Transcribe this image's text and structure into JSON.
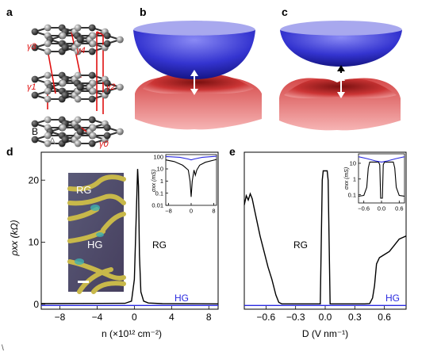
{
  "panels": {
    "a": {
      "letter": "a",
      "hopping_labels": [
        "γ3",
        "γ4",
        "γ1",
        "γ2",
        "γ0"
      ],
      "sublattice_labels": [
        "B",
        "A"
      ]
    },
    "b": {
      "letter": "b"
    },
    "c": {
      "letter": "c"
    },
    "d": {
      "letter": "d"
    },
    "e": {
      "letter": "e"
    }
  },
  "colors": {
    "black": "#000000",
    "blue": "#2a2ae0",
    "red_hop": "#e01010",
    "band_blue": "#3b3bd8",
    "band_red": "#d84444"
  },
  "chart_data": [
    {
      "id": "d-main",
      "type": "line",
      "xlabel": "n (×10¹² cm⁻²)",
      "ylabel": "ρxx (kΩ)",
      "xlim": [
        -10,
        9
      ],
      "ylim": [
        -0.8,
        24.5
      ],
      "xticks": [
        "-8",
        "-4",
        "0",
        "4",
        "8"
      ],
      "yticks": [
        "0",
        "10",
        "20"
      ],
      "series": [
        {
          "name": "RG",
          "color": "#000000",
          "x": [
            -10,
            -1,
            -0.3,
            0,
            0.2,
            0.35,
            0.45,
            0.55,
            0.7,
            1.0,
            1.5,
            3,
            9
          ],
          "y": [
            0.1,
            0.15,
            0.5,
            4,
            14,
            21.8,
            19,
            8,
            2,
            0.5,
            0.2,
            0.1,
            0.05
          ]
        },
        {
          "name": "HG",
          "color": "#2a2ae0",
          "x": [
            -10,
            9
          ],
          "y": [
            -0.2,
            -0.2
          ]
        }
      ],
      "labels": {
        "rg": "RG",
        "hg": "HG"
      }
    },
    {
      "id": "d-inset",
      "type": "line",
      "xlabel": "",
      "ylabel": "σxx (mS)",
      "scale": "log",
      "xlim": [
        -9,
        9
      ],
      "ylim": [
        0.01,
        150
      ],
      "xticks": [
        "-8",
        "0",
        "8"
      ],
      "yticks": [
        "0.01",
        "0.1",
        "1",
        "10",
        "100"
      ],
      "series": [
        {
          "name": "black",
          "color": "#000000",
          "x": [
            -9,
            -6,
            -3,
            -1,
            -0.4,
            0,
            0.4,
            1,
            1.5,
            2,
            3,
            5,
            9
          ],
          "y": [
            55,
            40,
            20,
            8,
            1,
            0.05,
            1,
            8,
            3,
            8,
            20,
            35,
            60
          ]
        },
        {
          "name": "blue",
          "color": "#2a2ae0",
          "x": [
            -9,
            -4,
            -1,
            0,
            1,
            4,
            9
          ],
          "y": [
            105,
            90,
            65,
            55,
            65,
            90,
            110
          ]
        }
      ]
    },
    {
      "id": "e-main",
      "type": "line",
      "xlabel": "D (V nm⁻¹)",
      "xlim": [
        -0.82,
        0.82
      ],
      "ylim": [
        -0.8,
        24.5
      ],
      "xticks": [
        "-0.6",
        "-0.3",
        "0.0",
        "0.3",
        "0.6"
      ],
      "series": [
        {
          "name": "RG",
          "color": "#000000",
          "x": [
            -0.82,
            -0.8,
            -0.78,
            -0.76,
            -0.74,
            -0.72,
            -0.7,
            -0.66,
            -0.62,
            -0.58,
            -0.54,
            -0.5,
            -0.47,
            -0.44,
            -0.4,
            -0.05,
            -0.03,
            -0.02,
            0.02,
            0.03,
            0.05,
            0.4,
            0.45,
            0.48,
            0.5,
            0.52,
            0.55,
            0.6,
            0.65,
            0.7,
            0.75,
            0.82
          ],
          "y": [
            16,
            17.5,
            16.8,
            17.8,
            17,
            15.5,
            14,
            11,
            8.5,
            6,
            4,
            1.5,
            0.3,
            0.05,
            0.05,
            0.05,
            20,
            21.5,
            21.5,
            20,
            0.05,
            0.05,
            0.1,
            1,
            3,
            6.5,
            7.5,
            8,
            8.5,
            9.5,
            10.5,
            11
          ]
        },
        {
          "name": "HG",
          "color": "#2a2ae0",
          "x": [
            -0.82,
            0.82
          ],
          "y": [
            -0.2,
            -0.2
          ]
        }
      ],
      "labels": {
        "rg": "RG",
        "hg": "HG"
      }
    },
    {
      "id": "e-inset",
      "type": "line",
      "xlabel": "",
      "ylabel": "σxx (mS)",
      "scale": "log",
      "xlim": [
        -0.78,
        0.78
      ],
      "ylim": [
        0.03,
        40
      ],
      "xticks": [
        "-0.6",
        "0.0",
        "0.6"
      ],
      "yticks": [
        "0.1",
        "1",
        "10"
      ],
      "series": [
        {
          "name": "black",
          "color": "#000000",
          "x": [
            -0.78,
            -0.6,
            -0.5,
            -0.45,
            -0.4,
            -0.1,
            -0.06,
            -0.03,
            0.03,
            0.06,
            0.1,
            0.4,
            0.45,
            0.5,
            0.6,
            0.78
          ],
          "y": [
            0.08,
            0.09,
            0.3,
            5,
            12,
            12,
            8,
            0.06,
            0.06,
            8,
            12,
            12,
            5,
            0.3,
            0.09,
            0.08
          ]
        },
        {
          "name": "blue",
          "color": "#2a2ae0",
          "x": [
            -0.78,
            -0.5,
            -0.2,
            0,
            0.2,
            0.5,
            0.78
          ],
          "y": [
            26,
            20,
            14,
            12,
            14,
            20,
            26
          ]
        }
      ]
    }
  ],
  "inset_image": {
    "labels": [
      "RG",
      "HG"
    ]
  }
}
